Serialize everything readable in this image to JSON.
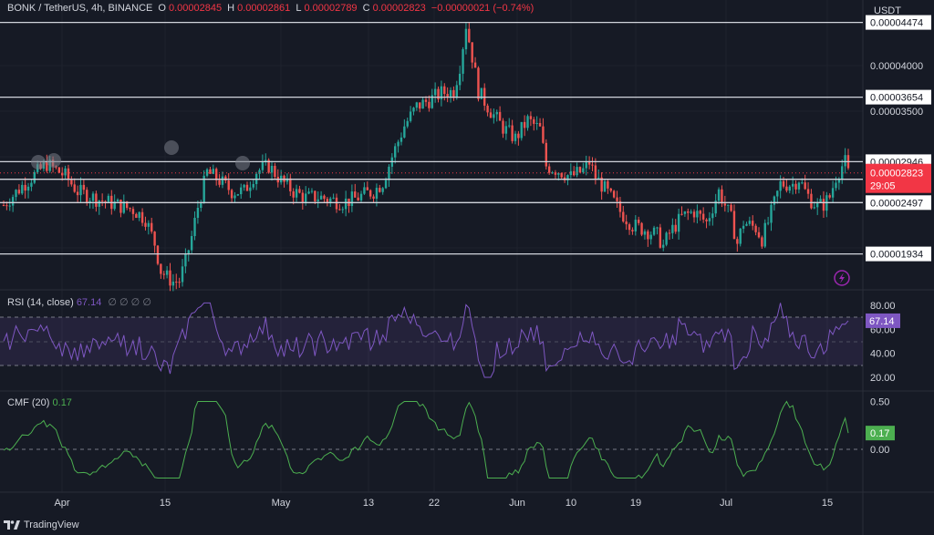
{
  "header": {
    "symbol": "BONK / TetherUS, 4h, BINANCE",
    "open_label": "O",
    "open": "0.00002845",
    "high_label": "H",
    "high": "0.00002861",
    "low_label": "L",
    "low": "0.00002789",
    "close_label": "C",
    "close": "0.00002823",
    "change": "−0.00000021 (−0.74%)"
  },
  "currency": "USDT",
  "rsi_title": "RSI (14, close)",
  "rsi_value": "67.14",
  "rsi_extra": "∅ ∅ ∅ ∅",
  "cmf_title": "CMF (20)",
  "cmf_value": "0.17",
  "brand": "TradingView",
  "colors": {
    "up": "#26a69a",
    "down": "#ef5350",
    "rsi": "#7e57c2",
    "cmf": "#4caf50",
    "bg": "#161a25",
    "accent_red": "#f23645"
  },
  "chart_data": [
    {
      "type": "candlestick",
      "title": "BONK / TetherUS, 4h, BINANCE",
      "x_tick_labels": [
        "Apr",
        "15",
        "May",
        "13",
        "22",
        "Jun",
        "10",
        "19",
        "Jul",
        "15"
      ],
      "y_tick_labels": [
        "0.00004000",
        "0.00003500"
      ],
      "ylim": [
        1.6e-05,
        4.6e-05
      ],
      "support_resistance_levels": [
        4.474e-05,
        3.654e-05,
        2.946e-05,
        2.753e-05,
        2.497e-05,
        1.934e-05
      ],
      "price_labels": [
        "0.00004474",
        "0.00003654",
        "0.00002946",
        "0.00002753",
        "0.00002497",
        "0.00001934"
      ],
      "last_price": "0.00002823",
      "countdown": "29:05",
      "price_path": [
        [
          0,
          2.47e-05
        ],
        [
          6,
          2.68e-05
        ],
        [
          14,
          2.92e-05
        ],
        [
          20,
          2.79e-05
        ],
        [
          24,
          2.62e-05
        ],
        [
          30,
          2.54e-05
        ],
        [
          36,
          2.48e-05
        ],
        [
          42,
          2.42e-05
        ],
        [
          46,
          2.32e-05
        ],
        [
          49,
          2.05e-05
        ],
        [
          51,
          1.75e-05
        ],
        [
          53,
          1.68e-05
        ],
        [
          55,
          1.63e-05
        ],
        [
          57,
          1.64e-05
        ],
        [
          59,
          1.85e-05
        ],
        [
          61,
          2.12e-05
        ],
        [
          63,
          2.45e-05
        ],
        [
          66,
          2.83e-05
        ],
        [
          70,
          2.74e-05
        ],
        [
          74,
          2.62e-05
        ],
        [
          78,
          2.62e-05
        ],
        [
          82,
          2.84e-05
        ],
        [
          86,
          2.9e-05
        ],
        [
          90,
          2.74e-05
        ],
        [
          94,
          2.62e-05
        ],
        [
          98,
          2.55e-05
        ],
        [
          102,
          2.56e-05
        ],
        [
          106,
          2.53e-05
        ],
        [
          110,
          2.5e-05
        ],
        [
          114,
          2.54e-05
        ],
        [
          118,
          2.6e-05
        ],
        [
          120,
          2.62e-05
        ],
        [
          123,
          2.72e-05
        ],
        [
          126,
          3e-05
        ],
        [
          130,
          3.34e-05
        ],
        [
          134,
          3.55e-05
        ],
        [
          138,
          3.62e-05
        ],
        [
          142,
          3.7e-05
        ],
        [
          146,
          3.72e-05
        ],
        [
          148,
          4e-05
        ],
        [
          150,
          4.45e-05
        ],
        [
          152,
          4.1e-05
        ],
        [
          154,
          3.72e-05
        ],
        [
          158,
          3.5e-05
        ],
        [
          162,
          3.32e-05
        ],
        [
          166,
          3.2e-05
        ],
        [
          170,
          3.4e-05
        ],
        [
          174,
          3.3e-05
        ],
        [
          176,
          2.9e-05
        ],
        [
          180,
          2.85e-05
        ],
        [
          184,
          2.78e-05
        ],
        [
          188,
          2.85e-05
        ],
        [
          190,
          2.94e-05
        ],
        [
          192,
          2.78e-05
        ],
        [
          196,
          2.6e-05
        ],
        [
          200,
          2.4e-05
        ],
        [
          204,
          2.25e-05
        ],
        [
          208,
          2.2e-05
        ],
        [
          212,
          2.14e-05
        ],
        [
          214,
          2.02e-05
        ],
        [
          216,
          2.16e-05
        ],
        [
          220,
          2.34e-05
        ],
        [
          224,
          2.4e-05
        ],
        [
          228,
          2.28e-05
        ],
        [
          232,
          2.62e-05
        ],
        [
          236,
          2.32e-05
        ],
        [
          238,
          2.05e-05
        ],
        [
          240,
          2.28e-05
        ],
        [
          244,
          2.22e-05
        ],
        [
          246,
          2.1e-05
        ],
        [
          248,
          2.28e-05
        ],
        [
          252,
          2.7e-05
        ],
        [
          256,
          2.7e-05
        ],
        [
          258,
          2.76e-05
        ],
        [
          260,
          2.62e-05
        ],
        [
          262,
          2.52e-05
        ],
        [
          264,
          2.46e-05
        ],
        [
          266,
          2.48e-05
        ],
        [
          268,
          2.56e-05
        ],
        [
          270,
          2.78e-05
        ],
        [
          272,
          2.9e-05
        ],
        [
          273,
          2.94e-05
        ],
        [
          274,
          2.82e-05
        ]
      ]
    },
    {
      "type": "line",
      "title": "RSI (14, close)",
      "yticks": [
        80.0,
        60.0,
        40.0,
        20.0
      ],
      "bands": [
        70,
        50,
        30
      ],
      "last_value": 67.14
    },
    {
      "type": "line",
      "title": "CMF (20)",
      "yticks": [
        0.5,
        0.0
      ],
      "last_value": 0.17
    }
  ]
}
